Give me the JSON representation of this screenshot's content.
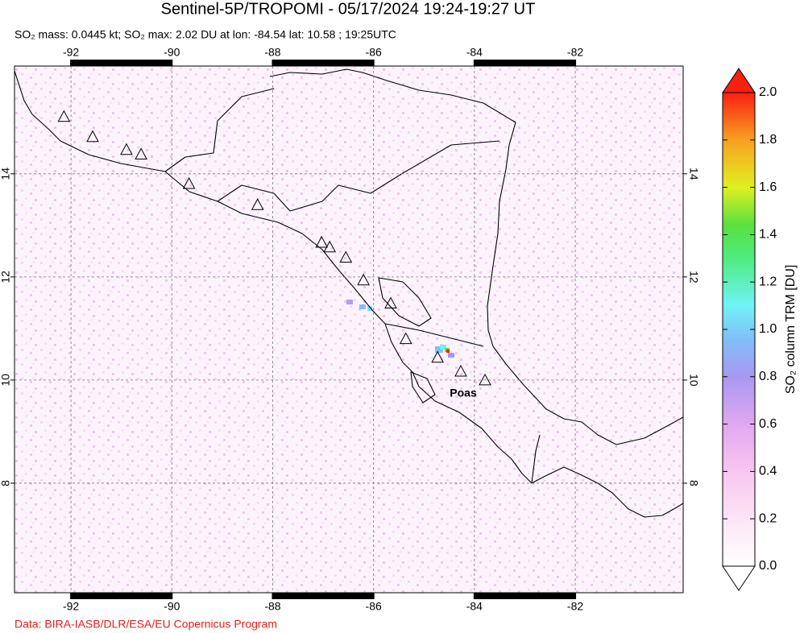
{
  "title": "Sentinel-5P/TROPOMI - 05/17/2024 19:24-19:27 UT",
  "subtitle": "SO₂ mass: 0.0445 kt; SO₂ max: 2.02 DU at lon: -84.54 lat: 10.58 ; 19:25UTC",
  "map": {
    "xlim": [
      -93.12,
      -79.86
    ],
    "ylim": [
      5.875,
      16.09
    ],
    "xticks": [
      -92,
      -90,
      -88,
      -86,
      -84,
      -82
    ],
    "yticks": [
      8,
      10,
      12,
      14
    ],
    "grid": true,
    "volcanoes": [
      {
        "lon": -92.14,
        "lat": 15.11
      },
      {
        "lon": -91.57,
        "lat": 14.72
      },
      {
        "lon": -90.9,
        "lat": 14.47
      },
      {
        "lon": -90.61,
        "lat": 14.38
      },
      {
        "lon": -89.66,
        "lat": 13.81
      },
      {
        "lon": -88.3,
        "lat": 13.4
      },
      {
        "lon": -87.03,
        "lat": 12.67
      },
      {
        "lon": -86.87,
        "lat": 12.58
      },
      {
        "lon": -86.55,
        "lat": 12.38
      },
      {
        "lon": -86.2,
        "lat": 11.94
      },
      {
        "lon": -85.66,
        "lat": 11.49
      },
      {
        "lon": -85.36,
        "lat": 10.8
      },
      {
        "lon": -84.73,
        "lat": 10.44
      },
      {
        "lon": -84.27,
        "lat": 10.17
      },
      {
        "lon": -83.79,
        "lat": 10.0
      }
    ],
    "volcano_label": "Poas"
  },
  "colorbar": {
    "label": "SO₂ column TRM [DU]",
    "clim": [
      0,
      2
    ],
    "ticks": [
      {
        "value": 0,
        "label": "0.0"
      },
      0.2,
      0.4,
      0.6,
      0.8,
      {
        "value": 1,
        "label": "1.0"
      },
      1.2,
      1.4,
      1.6,
      1.8,
      {
        "value": 2,
        "label": "2.0"
      }
    ]
  },
  "credit": "Data: BIRA-IASB/DLR/ESA/EU Copernicus Program"
}
